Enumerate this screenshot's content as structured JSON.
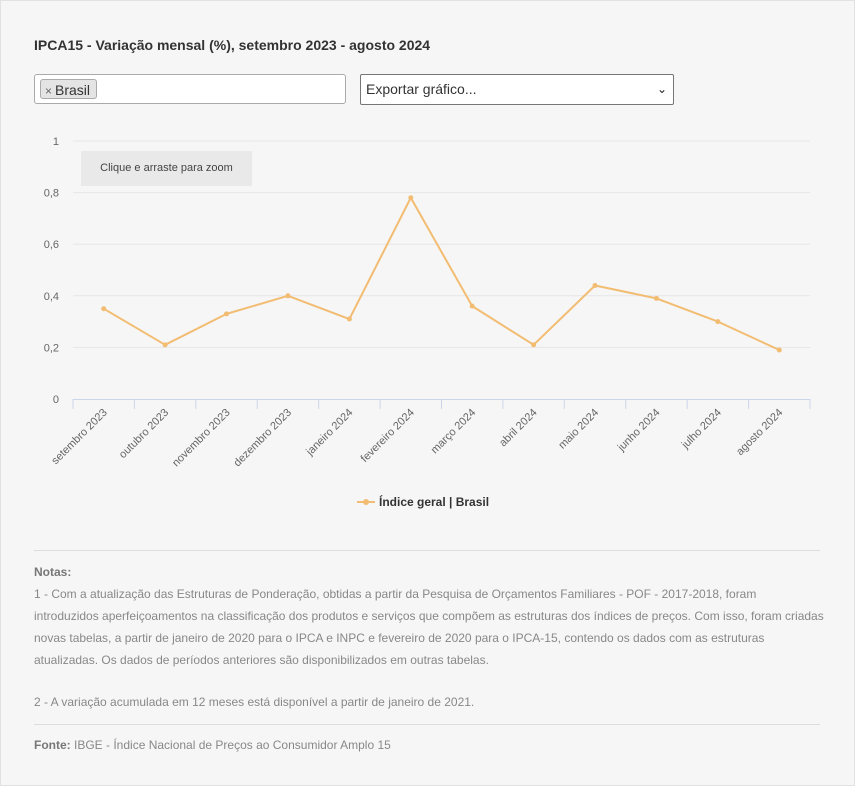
{
  "title": "IPCA15 - Variação mensal (%), setembro 2023 - agosto 2024",
  "filter": {
    "remove_symbol": "×",
    "selected": "Brasil"
  },
  "export": {
    "label": "Exportar gráfico...",
    "chevron": "⌄"
  },
  "zoom_hint": "Clique e arraste para zoom",
  "colors": {
    "series": "#f2bd72",
    "grid": "#e6e6e6",
    "axis": "#ccd6eb"
  },
  "chart_data": {
    "type": "line",
    "categories": [
      "setembro 2023",
      "outubro 2023",
      "novembro 2023",
      "dezembro 2023",
      "janeiro 2024",
      "fevereiro 2024",
      "março 2024",
      "abril 2024",
      "maio 2024",
      "junho 2024",
      "julho 2024",
      "agosto 2024"
    ],
    "series": [
      {
        "name": "Índice geral | Brasil",
        "values": [
          0.35,
          0.21,
          0.33,
          0.4,
          0.31,
          0.78,
          0.36,
          0.21,
          0.44,
          0.39,
          0.3,
          0.19
        ]
      }
    ],
    "ylim": [
      0,
      1
    ],
    "yticks": [
      "0",
      "0,2",
      "0,4",
      "0,6",
      "0,8",
      "1"
    ],
    "grid": true,
    "legend": "bottom-center"
  },
  "notes": {
    "heading": "Notas:",
    "note1": "1 - Com a atualização das Estruturas de Ponderação, obtidas a partir da Pesquisa de Orçamentos Familiares - POF - 2017-2018, foram introduzidos aperfeiçoamentos na classificação dos produtos e serviços que compõem as estruturas dos índices de preços. Com isso, foram criadas novas tabelas, a partir de janeiro de 2020 para o IPCA e INPC e fevereiro de 2020 para o IPCA-15, contendo os dados com as estruturas atualizadas. Os dados de períodos anteriores são disponibilizados em outras tabelas.",
    "note2": "2 - A variação acumulada em 12 meses está disponível a partir de janeiro de 2021."
  },
  "source": {
    "label": "Fonte:",
    "text": "IBGE - Índice Nacional de Preços ao Consumidor Amplo 15"
  }
}
